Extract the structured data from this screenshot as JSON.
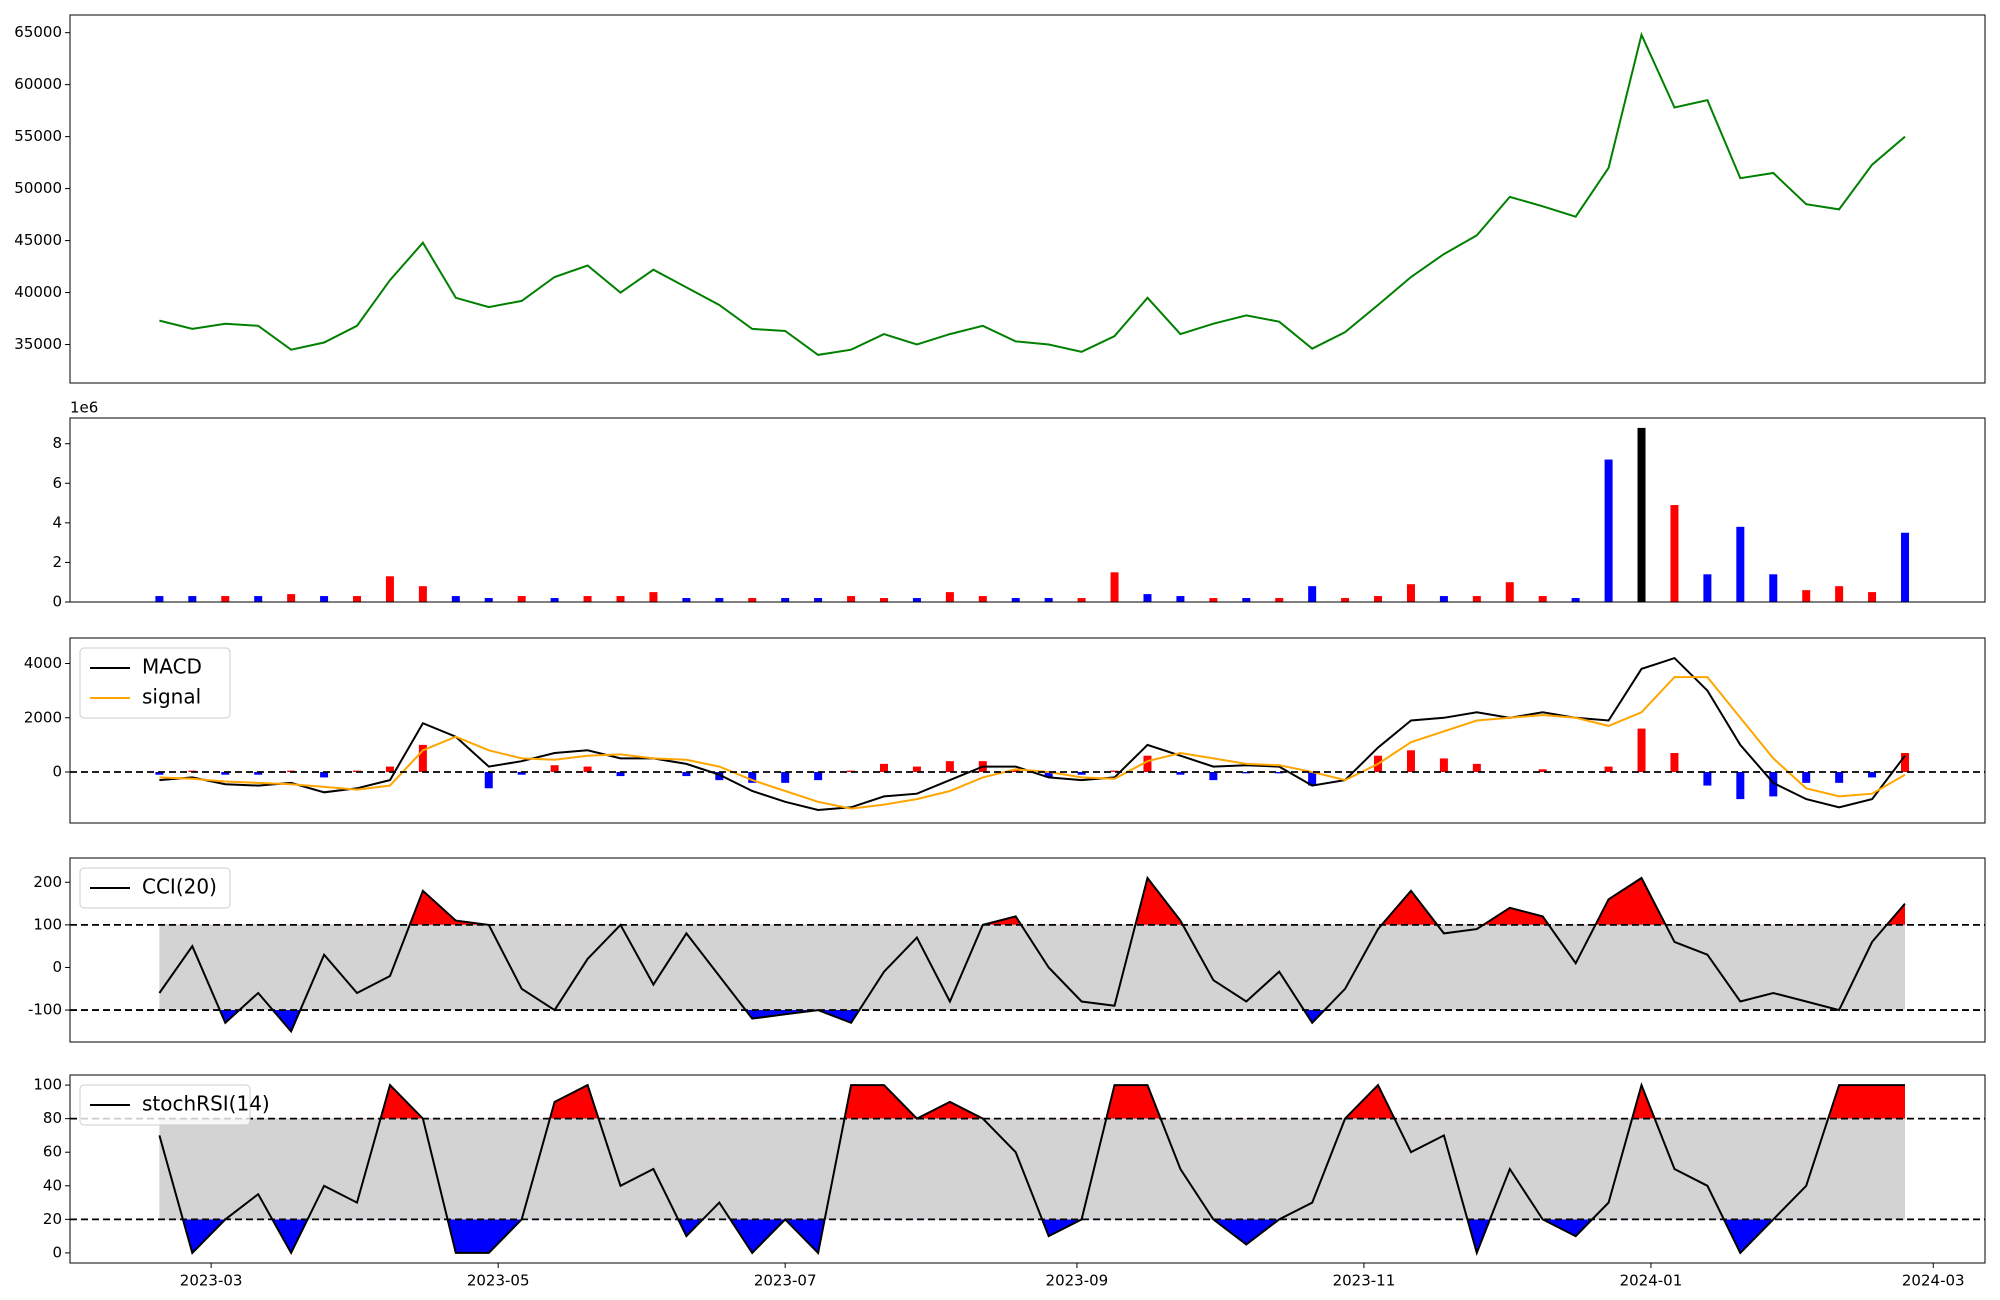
{
  "chart_data": [
    {
      "type": "line",
      "xlim": [
        "2023-01-30",
        "2024-03-12"
      ],
      "ylim": [
        31300,
        66700
      ],
      "yticks": [
        35000,
        40000,
        45000,
        50000,
        55000,
        60000,
        65000
      ],
      "x": [
        "2023-02-18",
        "2023-02-25",
        "2023-03-04",
        "2023-03-11",
        "2023-03-18",
        "2023-03-25",
        "2023-04-01",
        "2023-04-08",
        "2023-04-15",
        "2023-04-22",
        "2023-04-29",
        "2023-05-06",
        "2023-05-13",
        "2023-05-20",
        "2023-05-27",
        "2023-06-03",
        "2023-06-10",
        "2023-06-17",
        "2023-06-24",
        "2023-07-01",
        "2023-07-08",
        "2023-07-15",
        "2023-07-22",
        "2023-07-29",
        "2023-08-05",
        "2023-08-12",
        "2023-08-19",
        "2023-08-26",
        "2023-09-02",
        "2023-09-09",
        "2023-09-16",
        "2023-09-23",
        "2023-09-30",
        "2023-10-07",
        "2023-10-14",
        "2023-10-21",
        "2023-10-28",
        "2023-11-04",
        "2023-11-11",
        "2023-11-18",
        "2023-11-25",
        "2023-12-02",
        "2023-12-09",
        "2023-12-16",
        "2023-12-23",
        "2023-12-30",
        "2024-01-06",
        "2024-01-13",
        "2024-01-20",
        "2024-01-27",
        "2024-02-03",
        "2024-02-10",
        "2024-02-17",
        "2024-02-24"
      ],
      "series": [
        {
          "color": "#008000",
          "values": [
            37300,
            36500,
            37000,
            36800,
            34500,
            35200,
            36800,
            41200,
            44800,
            39500,
            38600,
            39200,
            41500,
            42600,
            40000,
            42200,
            40500,
            38800,
            36500,
            36300,
            34000,
            34500,
            36000,
            35000,
            36000,
            36800,
            35300,
            35000,
            34300,
            35800,
            39500,
            36000,
            37000,
            37800,
            37200,
            34600,
            36200,
            38800,
            41500,
            43700,
            45500,
            49200,
            48300,
            47300,
            52000,
            64800,
            57800,
            58500,
            51000,
            51500,
            48500,
            48000,
            52300,
            55000
          ]
        }
      ]
    },
    {
      "type": "bar",
      "xlim": [
        "2023-01-30",
        "2024-03-12"
      ],
      "ylim": [
        0,
        9.3
      ],
      "yticks": [
        0,
        2,
        4,
        6,
        8
      ],
      "offset_label": "1e6",
      "x": [
        "2023-02-18",
        "2023-02-25",
        "2023-03-04",
        "2023-03-11",
        "2023-03-18",
        "2023-03-25",
        "2023-04-01",
        "2023-04-08",
        "2023-04-15",
        "2023-04-22",
        "2023-04-29",
        "2023-05-06",
        "2023-05-13",
        "2023-05-20",
        "2023-05-27",
        "2023-06-03",
        "2023-06-10",
        "2023-06-17",
        "2023-06-24",
        "2023-07-01",
        "2023-07-08",
        "2023-07-15",
        "2023-07-22",
        "2023-07-29",
        "2023-08-05",
        "2023-08-12",
        "2023-08-19",
        "2023-08-26",
        "2023-09-02",
        "2023-09-09",
        "2023-09-16",
        "2023-09-23",
        "2023-09-30",
        "2023-10-07",
        "2023-10-14",
        "2023-10-21",
        "2023-10-28",
        "2023-11-04",
        "2023-11-11",
        "2023-11-18",
        "2023-11-25",
        "2023-12-02",
        "2023-12-09",
        "2023-12-16",
        "2023-12-23",
        "2023-12-30",
        "2024-01-06",
        "2024-01-13",
        "2024-01-20",
        "2024-01-27",
        "2024-02-03",
        "2024-02-10",
        "2024-02-17",
        "2024-02-24"
      ],
      "values": [
        0.3,
        0.3,
        0.3,
        0.3,
        0.4,
        0.3,
        0.3,
        1.3,
        0.8,
        0.3,
        0.2,
        0.3,
        0.2,
        0.3,
        0.3,
        0.5,
        0.2,
        0.2,
        0.2,
        0.2,
        0.2,
        0.3,
        0.2,
        0.2,
        0.5,
        0.3,
        0.2,
        0.2,
        0.2,
        1.5,
        0.4,
        0.3,
        0.2,
        0.2,
        0.2,
        0.8,
        0.2,
        0.3,
        0.9,
        0.3,
        0.3,
        1.0,
        0.3,
        0.2,
        7.2,
        8.8,
        4.9,
        1.4,
        3.8,
        1.4,
        0.6,
        0.8,
        0.5,
        3.5
      ],
      "colors": [
        "#0000ff",
        "#0000ff",
        "#ff0000",
        "#0000ff",
        "#ff0000",
        "#0000ff",
        "#ff0000",
        "#ff0000",
        "#ff0000",
        "#0000ff",
        "#0000ff",
        "#ff0000",
        "#0000ff",
        "#ff0000",
        "#ff0000",
        "#ff0000",
        "#0000ff",
        "#0000ff",
        "#ff0000",
        "#0000ff",
        "#0000ff",
        "#ff0000",
        "#ff0000",
        "#0000ff",
        "#ff0000",
        "#ff0000",
        "#0000ff",
        "#0000ff",
        "#ff0000",
        "#ff0000",
        "#0000ff",
        "#0000ff",
        "#ff0000",
        "#0000ff",
        "#ff0000",
        "#0000ff",
        "#ff0000",
        "#ff0000",
        "#ff0000",
        "#0000ff",
        "#ff0000",
        "#ff0000",
        "#ff0000",
        "#0000ff",
        "#0000ff",
        "#000000",
        "#ff0000",
        "#0000ff",
        "#0000ff",
        "#0000ff",
        "#ff0000",
        "#ff0000",
        "#ff0000",
        "#0000ff"
      ]
    },
    {
      "type": "line",
      "xlim": [
        "2023-01-30",
        "2024-03-12"
      ],
      "ylim": [
        -1880,
        4940
      ],
      "yticks": [
        0,
        2000,
        4000
      ],
      "hlines": [
        0
      ],
      "legend": "upper left",
      "x": [
        "2023-02-18",
        "2023-02-25",
        "2023-03-04",
        "2023-03-11",
        "2023-03-18",
        "2023-03-25",
        "2023-04-01",
        "2023-04-08",
        "2023-04-15",
        "2023-04-22",
        "2023-04-29",
        "2023-05-06",
        "2023-05-13",
        "2023-05-20",
        "2023-05-27",
        "2023-06-03",
        "2023-06-10",
        "2023-06-17",
        "2023-06-24",
        "2023-07-01",
        "2023-07-08",
        "2023-07-15",
        "2023-07-22",
        "2023-07-29",
        "2023-08-05",
        "2023-08-12",
        "2023-08-19",
        "2023-08-26",
        "2023-09-02",
        "2023-09-09",
        "2023-09-16",
        "2023-09-23",
        "2023-09-30",
        "2023-10-07",
        "2023-10-14",
        "2023-10-21",
        "2023-10-28",
        "2023-11-04",
        "2023-11-11",
        "2023-11-18",
        "2023-11-25",
        "2023-12-02",
        "2023-12-09",
        "2023-12-16",
        "2023-12-23",
        "2023-12-30",
        "2024-01-06",
        "2024-01-13",
        "2024-01-20",
        "2024-01-27",
        "2024-02-03",
        "2024-02-10",
        "2024-02-17",
        "2024-02-24"
      ],
      "histogram": {
        "pos_color": "#ff0000",
        "neg_color": "#0000ff",
        "values": [
          -100,
          50,
          -100,
          -100,
          50,
          -200,
          50,
          200,
          1000,
          0,
          -600,
          -100,
          250,
          200,
          -150,
          0,
          -150,
          -300,
          -400,
          -400,
          -300,
          50,
          300,
          200,
          400,
          400,
          100,
          -200,
          -100,
          50,
          600,
          -100,
          -300,
          -50,
          -50,
          -500,
          0,
          600,
          800,
          500,
          300,
          0,
          100,
          0,
          200,
          1600,
          700,
          -500,
          -1000,
          -900,
          -400,
          -400,
          -200,
          700
        ]
      },
      "series": [
        {
          "name": "MACD",
          "color": "#000000",
          "values": [
            -300,
            -200,
            -450,
            -500,
            -400,
            -750,
            -600,
            -300,
            1800,
            1300,
            200,
            400,
            700,
            800,
            500,
            500,
            300,
            -100,
            -700,
            -1100,
            -1400,
            -1300,
            -900,
            -800,
            -300,
            200,
            200,
            -200,
            -300,
            -200,
            1000,
            600,
            200,
            250,
            200,
            -500,
            -300,
            900,
            1900,
            2000,
            2200,
            2000,
            2200,
            2000,
            1900,
            3800,
            4200,
            3000,
            1000,
            -400,
            -1000,
            -1300,
            -1000,
            600
          ]
        },
        {
          "name": "signal",
          "color": "#ffa500",
          "values": [
            -200,
            -250,
            -350,
            -400,
            -450,
            -550,
            -650,
            -500,
            800,
            1300,
            800,
            500,
            450,
            600,
            650,
            500,
            450,
            200,
            -300,
            -700,
            -1100,
            -1350,
            -1200,
            -1000,
            -700,
            -200,
            100,
            0,
            -200,
            -250,
            400,
            700,
            500,
            300,
            250,
            0,
            -300,
            300,
            1100,
            1500,
            1900,
            2000,
            2100,
            2000,
            1700,
            2200,
            3500,
            3500,
            2000,
            500,
            -600,
            -900,
            -800,
            -100
          ]
        }
      ]
    },
    {
      "type": "line",
      "xlim": [
        "2023-01-30",
        "2024-03-12"
      ],
      "ylim": [
        -175,
        257
      ],
      "yticks": [
        -100,
        0,
        100,
        200
      ],
      "hlines": [
        100,
        -100
      ],
      "legend": "upper left",
      "band_color": "#d3d3d3",
      "upper_fill": "#ff0000",
      "lower_fill": "#0000ff",
      "x": [
        "2023-02-18",
        "2023-02-25",
        "2023-03-04",
        "2023-03-11",
        "2023-03-18",
        "2023-03-25",
        "2023-04-01",
        "2023-04-08",
        "2023-04-15",
        "2023-04-22",
        "2023-04-29",
        "2023-05-06",
        "2023-05-13",
        "2023-05-20",
        "2023-05-27",
        "2023-06-03",
        "2023-06-10",
        "2023-06-17",
        "2023-06-24",
        "2023-07-01",
        "2023-07-08",
        "2023-07-15",
        "2023-07-22",
        "2023-07-29",
        "2023-08-05",
        "2023-08-12",
        "2023-08-19",
        "2023-08-26",
        "2023-09-02",
        "2023-09-09",
        "2023-09-16",
        "2023-09-23",
        "2023-09-30",
        "2023-10-07",
        "2023-10-14",
        "2023-10-21",
        "2023-10-28",
        "2023-11-04",
        "2023-11-11",
        "2023-11-18",
        "2023-11-25",
        "2023-12-02",
        "2023-12-09",
        "2023-12-16",
        "2023-12-23",
        "2023-12-30",
        "2024-01-06",
        "2024-01-13",
        "2024-01-20",
        "2024-01-27",
        "2024-02-03",
        "2024-02-10",
        "2024-02-17",
        "2024-02-24"
      ],
      "series": [
        {
          "name": "CCI(20)",
          "color": "#000000",
          "values": [
            -60,
            50,
            -130,
            -60,
            -150,
            30,
            -60,
            -20,
            180,
            110,
            100,
            -50,
            -100,
            20,
            100,
            -40,
            80,
            -20,
            -120,
            -110,
            -100,
            -130,
            -10,
            70,
            -80,
            100,
            120,
            0,
            -80,
            -90,
            210,
            110,
            -30,
            -80,
            -10,
            -130,
            -50,
            90,
            180,
            80,
            90,
            140,
            120,
            10,
            160,
            210,
            60,
            30,
            -80,
            -60,
            -80,
            -100,
            60,
            150
          ]
        }
      ]
    },
    {
      "type": "line",
      "xlim": [
        "2023-01-30",
        "2024-03-12"
      ],
      "ylim": [
        -6,
        106
      ],
      "yticks": [
        0,
        20,
        40,
        60,
        80,
        100
      ],
      "hlines": [
        80,
        20
      ],
      "legend": "upper left",
      "band_color": "#d3d3d3",
      "upper_fill": "#ff0000",
      "lower_fill": "#0000ff",
      "xticks": [
        {
          "value": "2023-03-01",
          "label": "2023-03"
        },
        {
          "value": "2023-05-01",
          "label": "2023-05"
        },
        {
          "value": "2023-07-01",
          "label": "2023-07"
        },
        {
          "value": "2023-09-01",
          "label": "2023-09"
        },
        {
          "value": "2023-11-01",
          "label": "2023-11"
        },
        {
          "value": "2024-01-01",
          "label": "2024-01"
        },
        {
          "value": "2024-03-01",
          "label": "2024-03"
        }
      ],
      "x": [
        "2023-02-18",
        "2023-02-25",
        "2023-03-04",
        "2023-03-11",
        "2023-03-18",
        "2023-03-25",
        "2023-04-01",
        "2023-04-08",
        "2023-04-15",
        "2023-04-22",
        "2023-04-29",
        "2023-05-06",
        "2023-05-13",
        "2023-05-20",
        "2023-05-27",
        "2023-06-03",
        "2023-06-10",
        "2023-06-17",
        "2023-06-24",
        "2023-07-01",
        "2023-07-08",
        "2023-07-15",
        "2023-07-22",
        "2023-07-29",
        "2023-08-05",
        "2023-08-12",
        "2023-08-19",
        "2023-08-26",
        "2023-09-02",
        "2023-09-09",
        "2023-09-16",
        "2023-09-23",
        "2023-09-30",
        "2023-10-07",
        "2023-10-14",
        "2023-10-21",
        "2023-10-28",
        "2023-11-04",
        "2023-11-11",
        "2023-11-18",
        "2023-11-25",
        "2023-12-02",
        "2023-12-09",
        "2023-12-16",
        "2023-12-23",
        "2023-12-30",
        "2024-01-06",
        "2024-01-13",
        "2024-01-20",
        "2024-01-27",
        "2024-02-03",
        "2024-02-10",
        "2024-02-17",
        "2024-02-24"
      ],
      "series": [
        {
          "name": "stochRSI(14)",
          "color": "#000000",
          "values": [
            70,
            0,
            20,
            35,
            0,
            40,
            30,
            100,
            80,
            0,
            0,
            20,
            90,
            100,
            40,
            50,
            10,
            30,
            0,
            20,
            0,
            100,
            100,
            80,
            90,
            80,
            60,
            10,
            20,
            100,
            100,
            50,
            20,
            5,
            20,
            30,
            80,
            100,
            60,
            70,
            0,
            50,
            20,
            10,
            30,
            100,
            50,
            40,
            0,
            20,
            40,
            100,
            100,
            100
          ]
        }
      ]
    }
  ]
}
